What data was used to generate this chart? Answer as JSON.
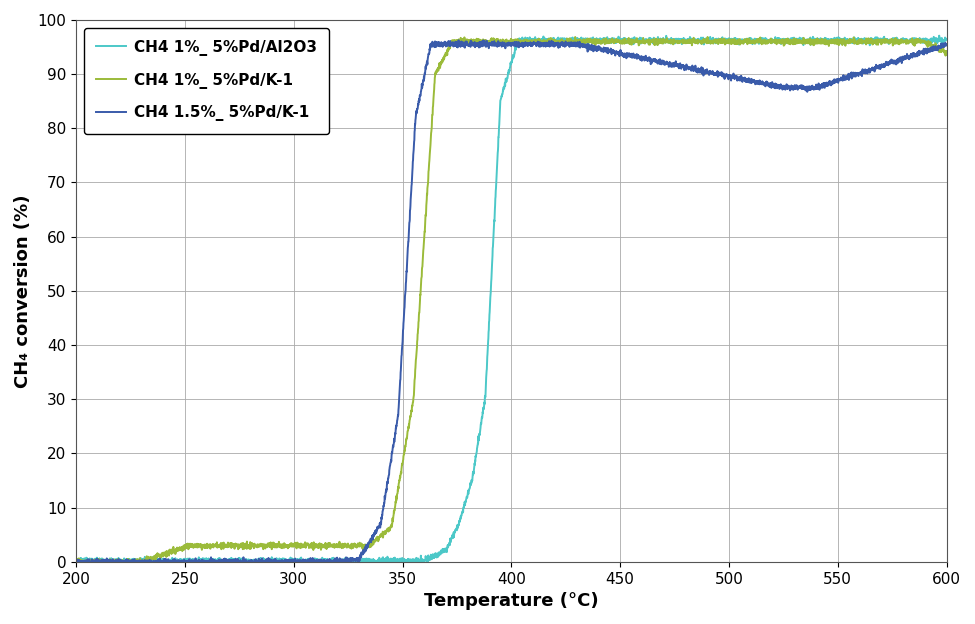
{
  "title": "",
  "xlabel": "Temperature (°C)",
  "ylabel": "CH₄ conversion (%)",
  "xlim": [
    200,
    600
  ],
  "ylim": [
    0,
    100
  ],
  "xticks": [
    200,
    250,
    300,
    350,
    400,
    450,
    500,
    550,
    600
  ],
  "yticks": [
    0,
    10,
    20,
    30,
    40,
    50,
    60,
    70,
    80,
    90,
    100
  ],
  "series": [
    {
      "label": "CH4 1%_ 5%Pd/Al2O3",
      "color": "#4CC8C8",
      "lw": 1.4
    },
    {
      "label": "CH4 1%_ 5%Pd/K-1",
      "color": "#9BBB3A",
      "lw": 1.4
    },
    {
      "label": "CH4 1.5%_ 5%Pd/K-1",
      "color": "#3A5BAA",
      "lw": 1.4
    }
  ],
  "background_color": "#ffffff",
  "grid_color": "#aaaaaa",
  "legend_fontsize": 11,
  "axis_fontsize": 13,
  "tick_fontsize": 11
}
